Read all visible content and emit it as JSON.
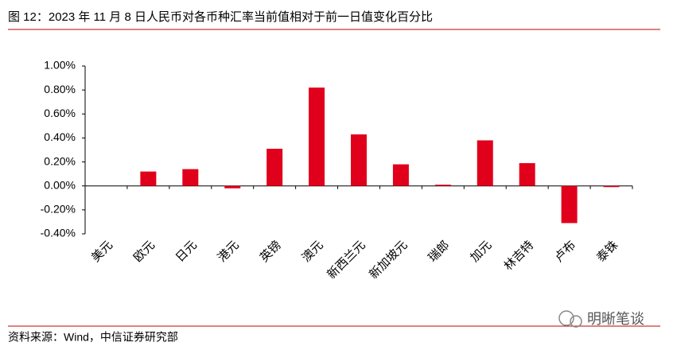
{
  "chart_data": {
    "type": "bar",
    "title": "图 12：2023 年 11 月 8 日人民币对各币种汇率当前值相对于前一日值变化百分比",
    "source": "资料来源：Wind，中信证券研究部",
    "watermark": "明晰笔谈",
    "categories": [
      "美元",
      "欧元",
      "日元",
      "港元",
      "英镑",
      "澳元",
      "新西兰元",
      "新加坡元",
      "瑞郎",
      "加元",
      "林吉特",
      "卢布",
      "泰铢"
    ],
    "values": [
      0,
      0.12,
      0.14,
      -0.02,
      0.31,
      0.82,
      0.43,
      0.18,
      0.01,
      0.38,
      0.19,
      -0.31,
      -0.01
    ],
    "color": "#e0001b",
    "ylim": [
      -0.4,
      1.0
    ],
    "yticks": [
      {
        "value": -0.4,
        "label": "-0.40%"
      },
      {
        "value": -0.2,
        "label": "-0.20%"
      },
      {
        "value": 0,
        "label": "0.00%"
      },
      {
        "value": 0.2,
        "label": "0.20%"
      },
      {
        "value": 0.4,
        "label": "0.40%"
      },
      {
        "value": 0.6,
        "label": "0.60%"
      },
      {
        "value": 0.8,
        "label": "0.80%"
      },
      {
        "value": 1.0,
        "label": "1.00%"
      }
    ],
    "grid": false
  }
}
